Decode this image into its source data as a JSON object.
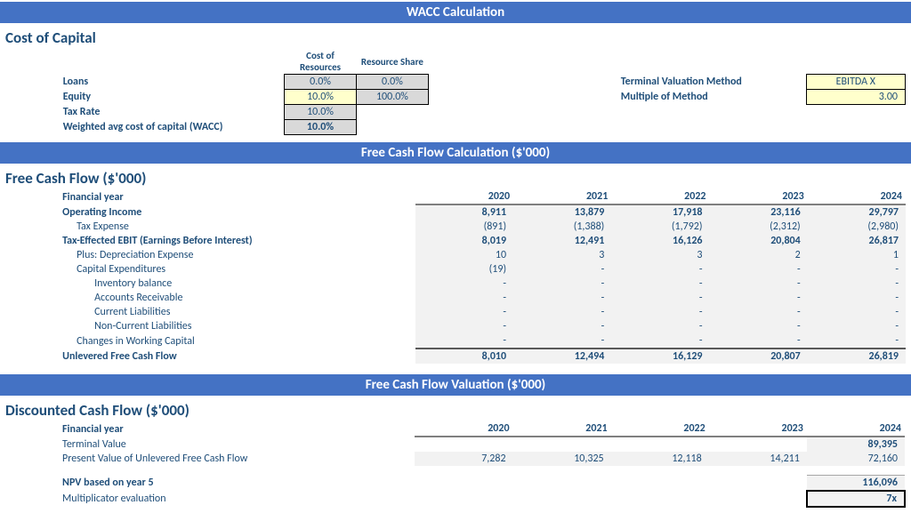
{
  "banners": {
    "wacc": "WACC Calculation",
    "fcf_calc": "Free Cash Flow Calculation ($'000)",
    "fcf_val": "Free Cash Flow Valuation ($'000)"
  },
  "cost_of_capital": {
    "title": "Cost of Capital",
    "hdr_cost": "Cost of Resources",
    "hdr_share": "Resource Share",
    "rows": {
      "loans": {
        "label": "Loans",
        "cost": "0.0%",
        "share": "0.0%"
      },
      "equity": {
        "label": "Equity",
        "cost": "10.0%",
        "share": "100.0%"
      },
      "tax": {
        "label": "Tax Rate",
        "cost": "10.0%"
      },
      "wacc": {
        "label": "Weighted avg cost of capital (WACC)",
        "cost": "10.0%"
      }
    },
    "terminal": {
      "method_label": "Terminal Valuation Method",
      "method_value": "EBITDA X",
      "mult_label": "Multiple of Method",
      "mult_value": "3.00"
    }
  },
  "fcf": {
    "title": "Free Cash Flow ($'000)",
    "fy_label": "Financial year",
    "years": [
      "2020",
      "2021",
      "2022",
      "2023",
      "2024"
    ],
    "rows": [
      {
        "key": "op_inc",
        "label": "Operating Income",
        "indent": 0,
        "bold": true,
        "vals": [
          "8,911",
          "13,879",
          "17,918",
          "23,116",
          "29,797"
        ]
      },
      {
        "key": "tax_exp",
        "label": "Tax Expense",
        "indent": 1,
        "bold": false,
        "vals": [
          "(891)",
          "(1,388)",
          "(1,792)",
          "(2,312)",
          "(2,980)"
        ]
      },
      {
        "key": "te_ebit",
        "label": "Tax-Effected EBIT (Earnings Before Interest)",
        "indent": 0,
        "bold": true,
        "vals": [
          "8,019",
          "12,491",
          "16,126",
          "20,804",
          "26,817"
        ]
      },
      {
        "key": "dep",
        "label": "Plus: Depreciation Expense",
        "indent": 1,
        "bold": false,
        "vals": [
          "10",
          "3",
          "3",
          "2",
          "1"
        ]
      },
      {
        "key": "capex",
        "label": "Capital Expenditures",
        "indent": 1,
        "bold": false,
        "vals": [
          "(19)",
          "-",
          "-",
          "-",
          "-"
        ]
      },
      {
        "key": "inv",
        "label": "Inventory balance",
        "indent": 2,
        "bold": false,
        "vals": [
          "-",
          "-",
          "-",
          "-",
          "-"
        ]
      },
      {
        "key": "ar",
        "label": "Accounts Receivable",
        "indent": 2,
        "bold": false,
        "vals": [
          "-",
          "-",
          "-",
          "-",
          "-"
        ]
      },
      {
        "key": "cl",
        "label": "Current Liabilities",
        "indent": 2,
        "bold": false,
        "vals": [
          "-",
          "-",
          "-",
          "-",
          "-"
        ]
      },
      {
        "key": "ncl",
        "label": "Non-Current Liabilities",
        "indent": 2,
        "bold": false,
        "vals": [
          "-",
          "-",
          "-",
          "-",
          "-"
        ]
      },
      {
        "key": "cwc",
        "label": "Changes in Working Capital",
        "indent": 1,
        "bold": false,
        "vals": [
          "-",
          "-",
          "-",
          "-",
          "-"
        ]
      },
      {
        "key": "ufcf",
        "label": "Unlevered Free Cash Flow",
        "indent": 0,
        "bold": true,
        "top": true,
        "vals": [
          "8,010",
          "12,494",
          "16,129",
          "20,807",
          "26,819"
        ]
      }
    ]
  },
  "dcf": {
    "title": "Discounted Cash Flow ($'000)",
    "fy_label": "Financial year",
    "years": [
      "2020",
      "2021",
      "2022",
      "2023",
      "2024"
    ],
    "rows": [
      {
        "key": "tv",
        "label": "Terminal Value",
        "indent": 0,
        "bold": false,
        "vals": [
          "",
          "",
          "",
          "",
          "89,395"
        ],
        "last_bold": true
      },
      {
        "key": "pv",
        "label": "Present Value of Unlevered Free Cash Flow",
        "indent": 0,
        "bold": false,
        "vals": [
          "7,282",
          "10,325",
          "12,118",
          "14,211",
          "72,160"
        ]
      }
    ],
    "npv": {
      "label": "NPV based on year 5",
      "value": "116,096"
    },
    "mult": {
      "label": "Multiplicator evaluation",
      "value": "7x"
    }
  }
}
